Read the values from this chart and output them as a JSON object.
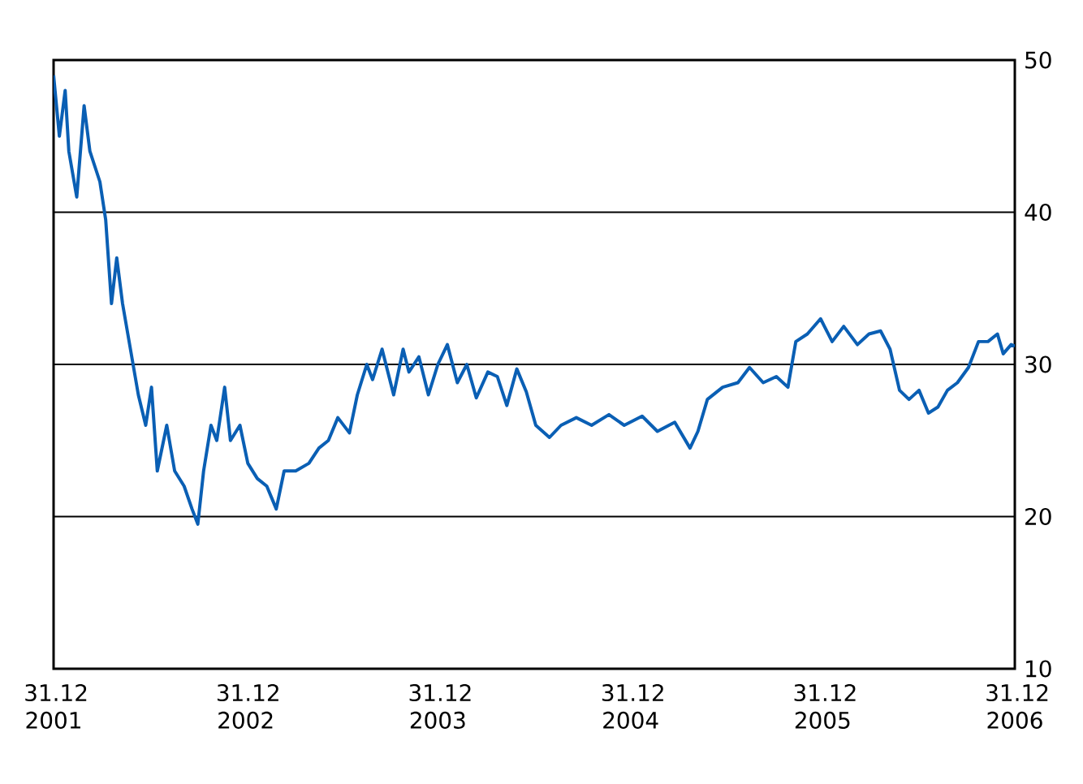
{
  "chart_data": {
    "type": "line",
    "xlim": [
      "2001-12-31",
      "2006-12-31"
    ],
    "ylim": [
      10,
      50
    ],
    "xticks": [
      {
        "value": "2001-12-31",
        "label": "31.12 2001"
      },
      {
        "value": "2002-12-31",
        "label": "31.12 2002"
      },
      {
        "value": "2003-12-31",
        "label": "31.12 2003"
      },
      {
        "value": "2004-12-31",
        "label": "31.12 2004"
      },
      {
        "value": "2005-12-31",
        "label": "31.12 2005"
      },
      {
        "value": "2006-12-31",
        "label": "31.12 2006"
      }
    ],
    "yticks": [
      10,
      20,
      30,
      40,
      50
    ],
    "grid": "y",
    "marker": "none",
    "line_style": "solid",
    "x": [
      "2001-12-31",
      "2002-01-11",
      "2002-01-22",
      "2002-01-29",
      "2002-02-13",
      "2002-02-27",
      "2002-03-10",
      "2002-03-29",
      "2002-04-09",
      "2002-04-20",
      "2002-04-30",
      "2002-05-11",
      "2002-05-26",
      "2002-06-10",
      "2002-06-24",
      "2002-07-05",
      "2002-07-16",
      "2002-08-03",
      "2002-08-18",
      "2002-09-05",
      "2002-09-20",
      "2002-10-01",
      "2002-10-12",
      "2002-10-26",
      "2002-11-06",
      "2002-11-21",
      "2002-12-02",
      "2002-12-20",
      "2003-01-04",
      "2003-01-22",
      "2003-02-09",
      "2003-02-27",
      "2003-03-14",
      "2003-04-05",
      "2003-04-30",
      "2003-05-19",
      "2003-06-06",
      "2003-06-24",
      "2003-07-16",
      "2003-07-31",
      "2003-08-18",
      "2003-08-29",
      "2003-09-16",
      "2003-10-08",
      "2003-10-26",
      "2003-11-06",
      "2003-11-25",
      "2003-12-13",
      "2003-12-31",
      "2004-01-18",
      "2004-02-06",
      "2004-02-24",
      "2004-03-13",
      "2004-04-04",
      "2004-04-22",
      "2004-05-10",
      "2004-05-29",
      "2004-06-16",
      "2004-07-04",
      "2004-07-30",
      "2004-08-21",
      "2004-09-19",
      "2004-10-18",
      "2004-11-20",
      "2004-12-19",
      "2005-01-22",
      "2005-02-20",
      "2005-03-25",
      "2005-04-23",
      "2005-05-08",
      "2005-05-26",
      "2005-06-24",
      "2005-07-23",
      "2005-08-14",
      "2005-09-09",
      "2005-10-04",
      "2005-10-26",
      "2005-11-10",
      "2005-12-02",
      "2005-12-27",
      "2006-01-18",
      "2006-02-09",
      "2006-03-07",
      "2006-03-29",
      "2006-04-20",
      "2006-05-08",
      "2006-05-26",
      "2006-06-13",
      "2006-07-02",
      "2006-07-20",
      "2006-08-07",
      "2006-08-25",
      "2006-09-13",
      "2006-10-04",
      "2006-10-23",
      "2006-11-10",
      "2006-11-28",
      "2006-12-09",
      "2006-12-24",
      "2006-12-31"
    ],
    "series": [
      {
        "color": "#0a5fb4",
        "values": [
          49,
          45,
          48,
          44,
          41,
          47,
          44,
          42,
          39.5,
          34,
          37,
          34,
          31,
          28,
          26,
          28.5,
          23,
          26,
          23,
          22,
          20.5,
          19.5,
          23,
          26,
          25,
          28.5,
          25,
          26,
          23.5,
          22.5,
          22,
          20.5,
          23,
          23,
          23.5,
          24.5,
          25,
          26.5,
          25.5,
          28,
          30,
          29,
          31,
          28,
          31,
          29.5,
          30.5,
          28,
          30,
          31.3,
          28.8,
          30,
          27.8,
          29.5,
          29.2,
          27.3,
          29.7,
          28.2,
          26,
          25.2,
          26,
          26.5,
          26,
          26.7,
          26,
          26.6,
          25.6,
          26.2,
          24.5,
          25.6,
          27.7,
          28.5,
          28.8,
          29.8,
          28.8,
          29.2,
          28.5,
          31.5,
          32,
          33,
          31.5,
          32.5,
          31.3,
          32,
          32.2,
          31,
          28.3,
          27.7,
          28.3,
          26.8,
          27.2,
          28.3,
          28.8,
          29.8,
          31.5,
          31.5,
          32,
          30.7,
          31.3,
          31.2
        ]
      }
    ]
  }
}
